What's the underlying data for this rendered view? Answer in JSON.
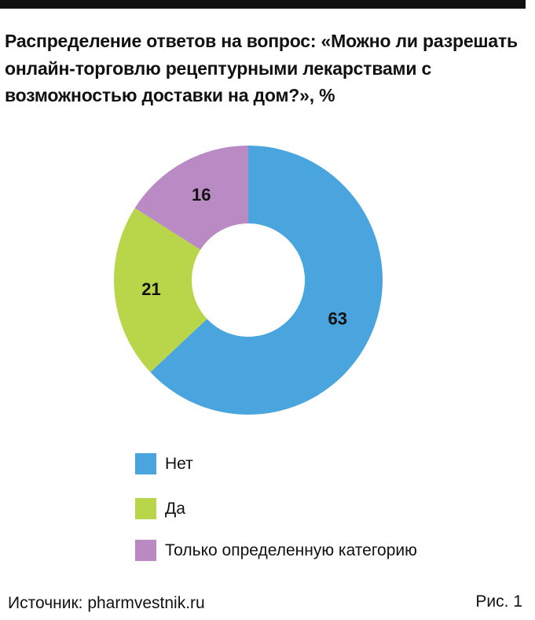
{
  "title": "Распределение ответов на вопрос: «Можно ли разрешать онлайн-торговлю рецептурными лекарствами с возможностью доставки на дом?», %",
  "source": "Источник: pharmvestnik.ru",
  "figure_number": "Рис. 1",
  "chart_data": {
    "type": "pie",
    "variant": "donut",
    "title": "Распределение ответов на вопрос: «Можно ли разрешать онлайн-торговлю рецептурными лекарствами с возможностью доставки на дом?», %",
    "unit": "%",
    "categories": [
      "Нет",
      "Да",
      "Только определенную категорию"
    ],
    "values": [
      63,
      21,
      16
    ],
    "data_labels": [
      "63",
      "21",
      "16"
    ],
    "colors": [
      "#4aa5de",
      "#b9d64b",
      "#b98ac4"
    ],
    "start": "12 o'clock",
    "direction": "clockwise",
    "legend": "bottom"
  }
}
